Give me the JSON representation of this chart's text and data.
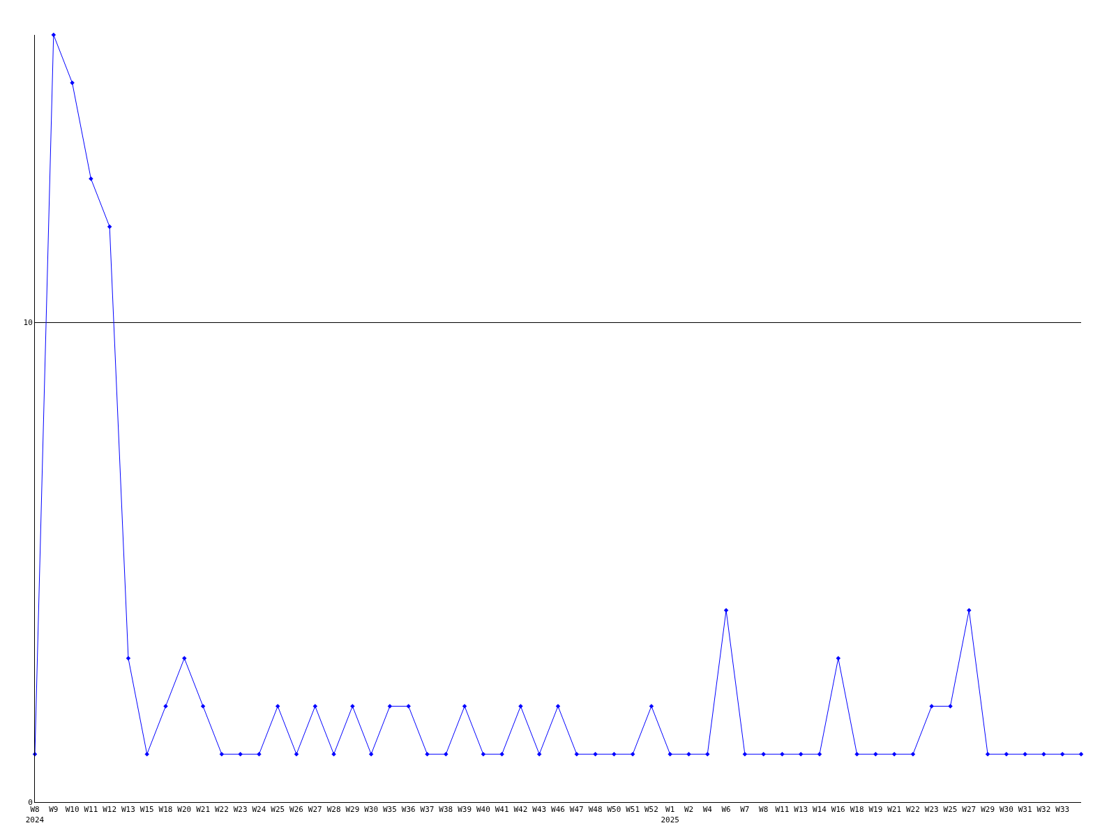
{
  "chart_data": {
    "type": "line",
    "categories": [
      "W8\n2024",
      "W9",
      "W10",
      "W11",
      "W12",
      "W13",
      "W15",
      "W18",
      "W20",
      "W21",
      "W22",
      "W23",
      "W24",
      "W25",
      "W26",
      "W27",
      "W28",
      "W29",
      "W30",
      "W35",
      "W36",
      "W37",
      "W38",
      "W39",
      "W40",
      "W41",
      "W42",
      "W43",
      "W46",
      "W47",
      "W48",
      "W50",
      "W51",
      "W52",
      "W1\n2025",
      "W2",
      "W4",
      "W6",
      "W7",
      "W8",
      "W11",
      "W13",
      "W14",
      "W16",
      "W18",
      "W19",
      "W21",
      "W22",
      "W23",
      "W25",
      "W27",
      "W29",
      "W30",
      "W31",
      "W32",
      "W33",
      null
    ],
    "series": [
      {
        "color": "#0000ff",
        "values": [
          1,
          16,
          15,
          13,
          12,
          3,
          1,
          2,
          3,
          2,
          1,
          1,
          1,
          2,
          1,
          2,
          1,
          2,
          1,
          2,
          2,
          1,
          1,
          2,
          1,
          1,
          2,
          1,
          2,
          1,
          1,
          1,
          1,
          2,
          1,
          1,
          1,
          4,
          1,
          1,
          1,
          1,
          1,
          3,
          1,
          1,
          1,
          1,
          2,
          2,
          4,
          1,
          1,
          1,
          1,
          1,
          1
        ]
      }
    ],
    "ylim": [
      0,
      16
    ],
    "yticks": [
      0,
      10
    ],
    "grid": "y",
    "legend": false,
    "marker": "diamond",
    "line_style": "solid"
  }
}
